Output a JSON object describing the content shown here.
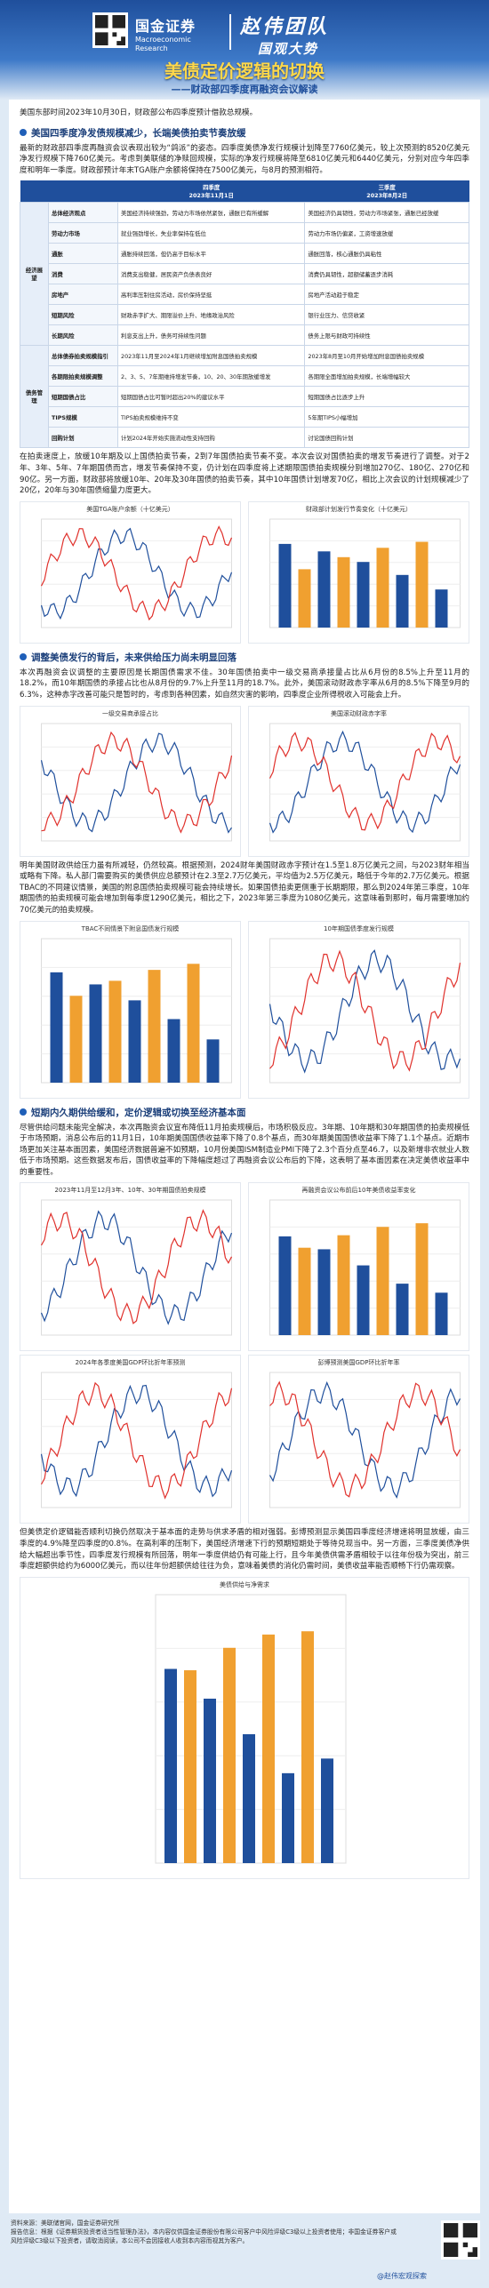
{
  "header": {
    "brand": "国金证券",
    "brand_en": "Macroeconomic Research",
    "team": "赵伟团队",
    "slogan": "国观大势",
    "title": "美债定价逻辑的切换",
    "subtitle": "——财政部四季度再融资会议解读"
  },
  "intro": "美国东部时间2023年10月30日，财政部公布四季度预计借款总规模。",
  "sections": [
    {
      "heading": "美国四季度净发债规模减少，长端美债拍卖节奏放缓",
      "paragraphs": [
        "最新的财政部四季度再融资会议表现出较为“鸽派”的姿态。四季度美债净发行规模计划降至7760亿美元，较上次预测的8520亿美元净发行规模下降760亿美元。考虑到美联储的净赎回规模，实际的净发行规模将降至6810亿美元和6440亿美元，分别对应今年四季度和明年一季度。财政部预计年末TGA账户余额将保持在7500亿美元，与8月的预测相符。"
      ],
      "table": {
        "header": [
          "四季度\n2023年11月1日",
          "三季度\n2023年8月2日"
        ],
        "groups": [
          {
            "category": "经济展望",
            "rows": [
              [
                "总体经济观点",
                "美国经济持续强劲，劳动力市场依然紧张，通胀已有所缓解",
                "美国经济仍具韧性，劳动力市场紧张，通胀已经放缓"
              ],
              [
                "劳动力市场",
                "就业强劲增长，失业率保持在低位",
                "劳动力市场仍偏紧，工资增速放缓"
              ],
              [
                "通胀",
                "通胀持续回落，但仍高于目标水平",
                "通胀回落，核心通胀仍具粘性"
              ],
              [
                "消费",
                "消费支出稳健，居民资产负债表良好",
                "消费仍具韧性，超额储蓄逐步消耗"
              ],
              [
                "房地产",
                "高利率压制住房活动，房价保持坚挺",
                "房地产活动趋于稳定"
              ],
              [
                "短期风险",
                "财政赤字扩大、期限溢价上升、地缘政治风险",
                "银行业压力、信贷收紧"
              ],
              [
                "长期风险",
                "利息支出上升，债务可持续性问题",
                "债务上限与财政可持续性"
              ]
            ]
          },
          {
            "category": "债务管理",
            "rows": [
              [
                "总体债券拍卖规模指引",
                "2023年11月至2024年1月继续增加附息国债拍卖规模",
                "2023年8月至10月开始增加附息国债拍卖规模"
              ],
              [
                "各期限拍卖规模调整",
                "2、3、5、7年期维持增发节奏，10、20、30年期放缓增发",
                "各期限全面增加拍卖规模，长端增幅较大"
              ],
              [
                "短期国债占比",
                "短期国债占比可暂时超出20%的建议水平",
                "短期国债占比逐步上升"
              ],
              [
                "TIPS规模",
                "TIPS拍卖规模维持不变",
                "5年期TIPS小幅增加"
              ],
              [
                "回购计划",
                "计划2024年开始实施流动性支持回购",
                "讨论国债回购计划"
              ]
            ]
          }
        ]
      },
      "paragraphs_after": [
        "在拍卖速度上，放缓10年期及以上国债拍卖节奏，2到7年国债拍卖节奏不变。本次会议对国债拍卖的增发节奏进行了调整。对于2年、3年、5年、7年期国债而言，增发节奏保持不变，仍计划在四季度将上述期限国债拍卖规模分别增加270亿、180亿、270亿和90亿。另一方面，财政部将放缓10年、20年及30年国债的拍卖节奏，其中10年国债计划增发70亿，相比上次会议的计划规模减少了20亿，20年与30年国债缩量力度更大。"
      ],
      "figures": [
        "美国TGA账户余额（十亿美元）",
        "财政部计划发行节奏变化（十亿美元）"
      ]
    },
    {
      "heading": "调整美债发行的背后，未来供给压力尚未明显回落",
      "paragraphs": [
        "本次再融资会议调整的主要原因是长期国债需求不佳。30年国债拍卖中一级交易商承接量占比从6月份的8.5%上升至11月的18.2%，而10年期国债的承接占比也从8月份的9.7%上升至11月的18.7%。此外，美国滚动财政赤字率从6月的8.5%下降至9月的6.3%，这种赤字改善可能只是暂时的，考虑到各种因素，如自然灾害的影响，四季度企业所得税收入可能会上升。"
      ],
      "figures": [
        "一级交易商承接占比",
        "美国滚动财政赤字率"
      ],
      "paragraphs_after": [
        "明年美国财政供给压力虽有所减轻，仍然较高。根据预测，2024财年美国财政赤字预计在1.5至1.8万亿美元之间，与2023财年相当或略有下降。私人部门需要购买的美债供应总额预计在2.3至2.7万亿美元，平均值为2.5万亿美元，略低于今年的2.7万亿美元。根据TBAC的不同建议情景，美国的附息国债拍卖规模可能会持续增长。如果国债拍卖更侧重于长期期限，那么到2024年第三季度，10年期国债的拍卖规模可能会增加到每季度1290亿美元，相比之下，2023年第三季度为1080亿美元，这意味着到那时，每月需要增加约70亿美元的拍卖规模。"
      ],
      "figures_after": [
        "TBAC不同情景下附息国债发行规模",
        "10年期国债季度发行规模"
      ]
    },
    {
      "heading": "短期内久期供给缓和，定价逻辑或切换至经济基本面",
      "paragraphs": [
        "尽管供给问题未能完全解决，本次再融资会议宣布降低11月拍卖规模后，市场积极反应。3年期、10年期和30年期国债的拍卖规模低于市场预期，消息公布后的11月1日，10年期美国国债收益率下降了0.8个基点，而30年期美国国债收益率下降了1.1个基点。近期市场更加关注基本面因素，美国经济数据普遍不如预期，10月份美国ISM制造业PMI下降了2.3个百分点至46.7，以及新增非农就业人数低于市场预期。这些数据发布后，国债收益率的下降幅度超过了再融资会议公布后的下降，这表明了基本面因素在决定美债收益率中的重要性。"
      ],
      "figures": [
        "2023年11月至12月3年、10年、30年期国债拍卖规模",
        "再融资会议公布前后10年美债收益率变化",
        "2024年各季度美国GDP环比折年率预测",
        "彭博预测美国GDP环比折年率"
      ],
      "paragraphs_after": [
        "但美债定价逻辑能否顺利切换仍然取决于基本面的走势与供求矛盾的相对强弱。彭博预测显示美国四季度经济增速将明显放缓，由三季度的4.9%降至四季度的0.8%。在高利率的压制下，美国经济增速下行的预期短期处于等待兑现当中。另一方面，三季度美债净供给大幅超出季节性，四季度发行规模有所回落，明年一季度供给仍有可能上行，且今年美债供需矛盾相较于以往年份极为突出，前三季度超额供给约为6000亿美元，而以往年份超额供给往往为负，意味着美债的消化仍需时间，美债收益率能否顺畅下行仍需观察。"
      ],
      "figures_after": [
        "美债供给与净需求"
      ]
    }
  ],
  "footer": {
    "source": "资料来源：美联储官网，国金证券研究所",
    "disclaimer": "报告信息：根据《证券期货投资者适当性管理办法》，本内容仅供国金证券股份有限公司客户中风险评级C3级以上投资者使用；非国金证券客户或风险评级C3级以下投资者，请取消阅读，本公司不会因接收人收到本内容而视其为客户。",
    "watermark": "@赵伟宏观探索"
  }
}
